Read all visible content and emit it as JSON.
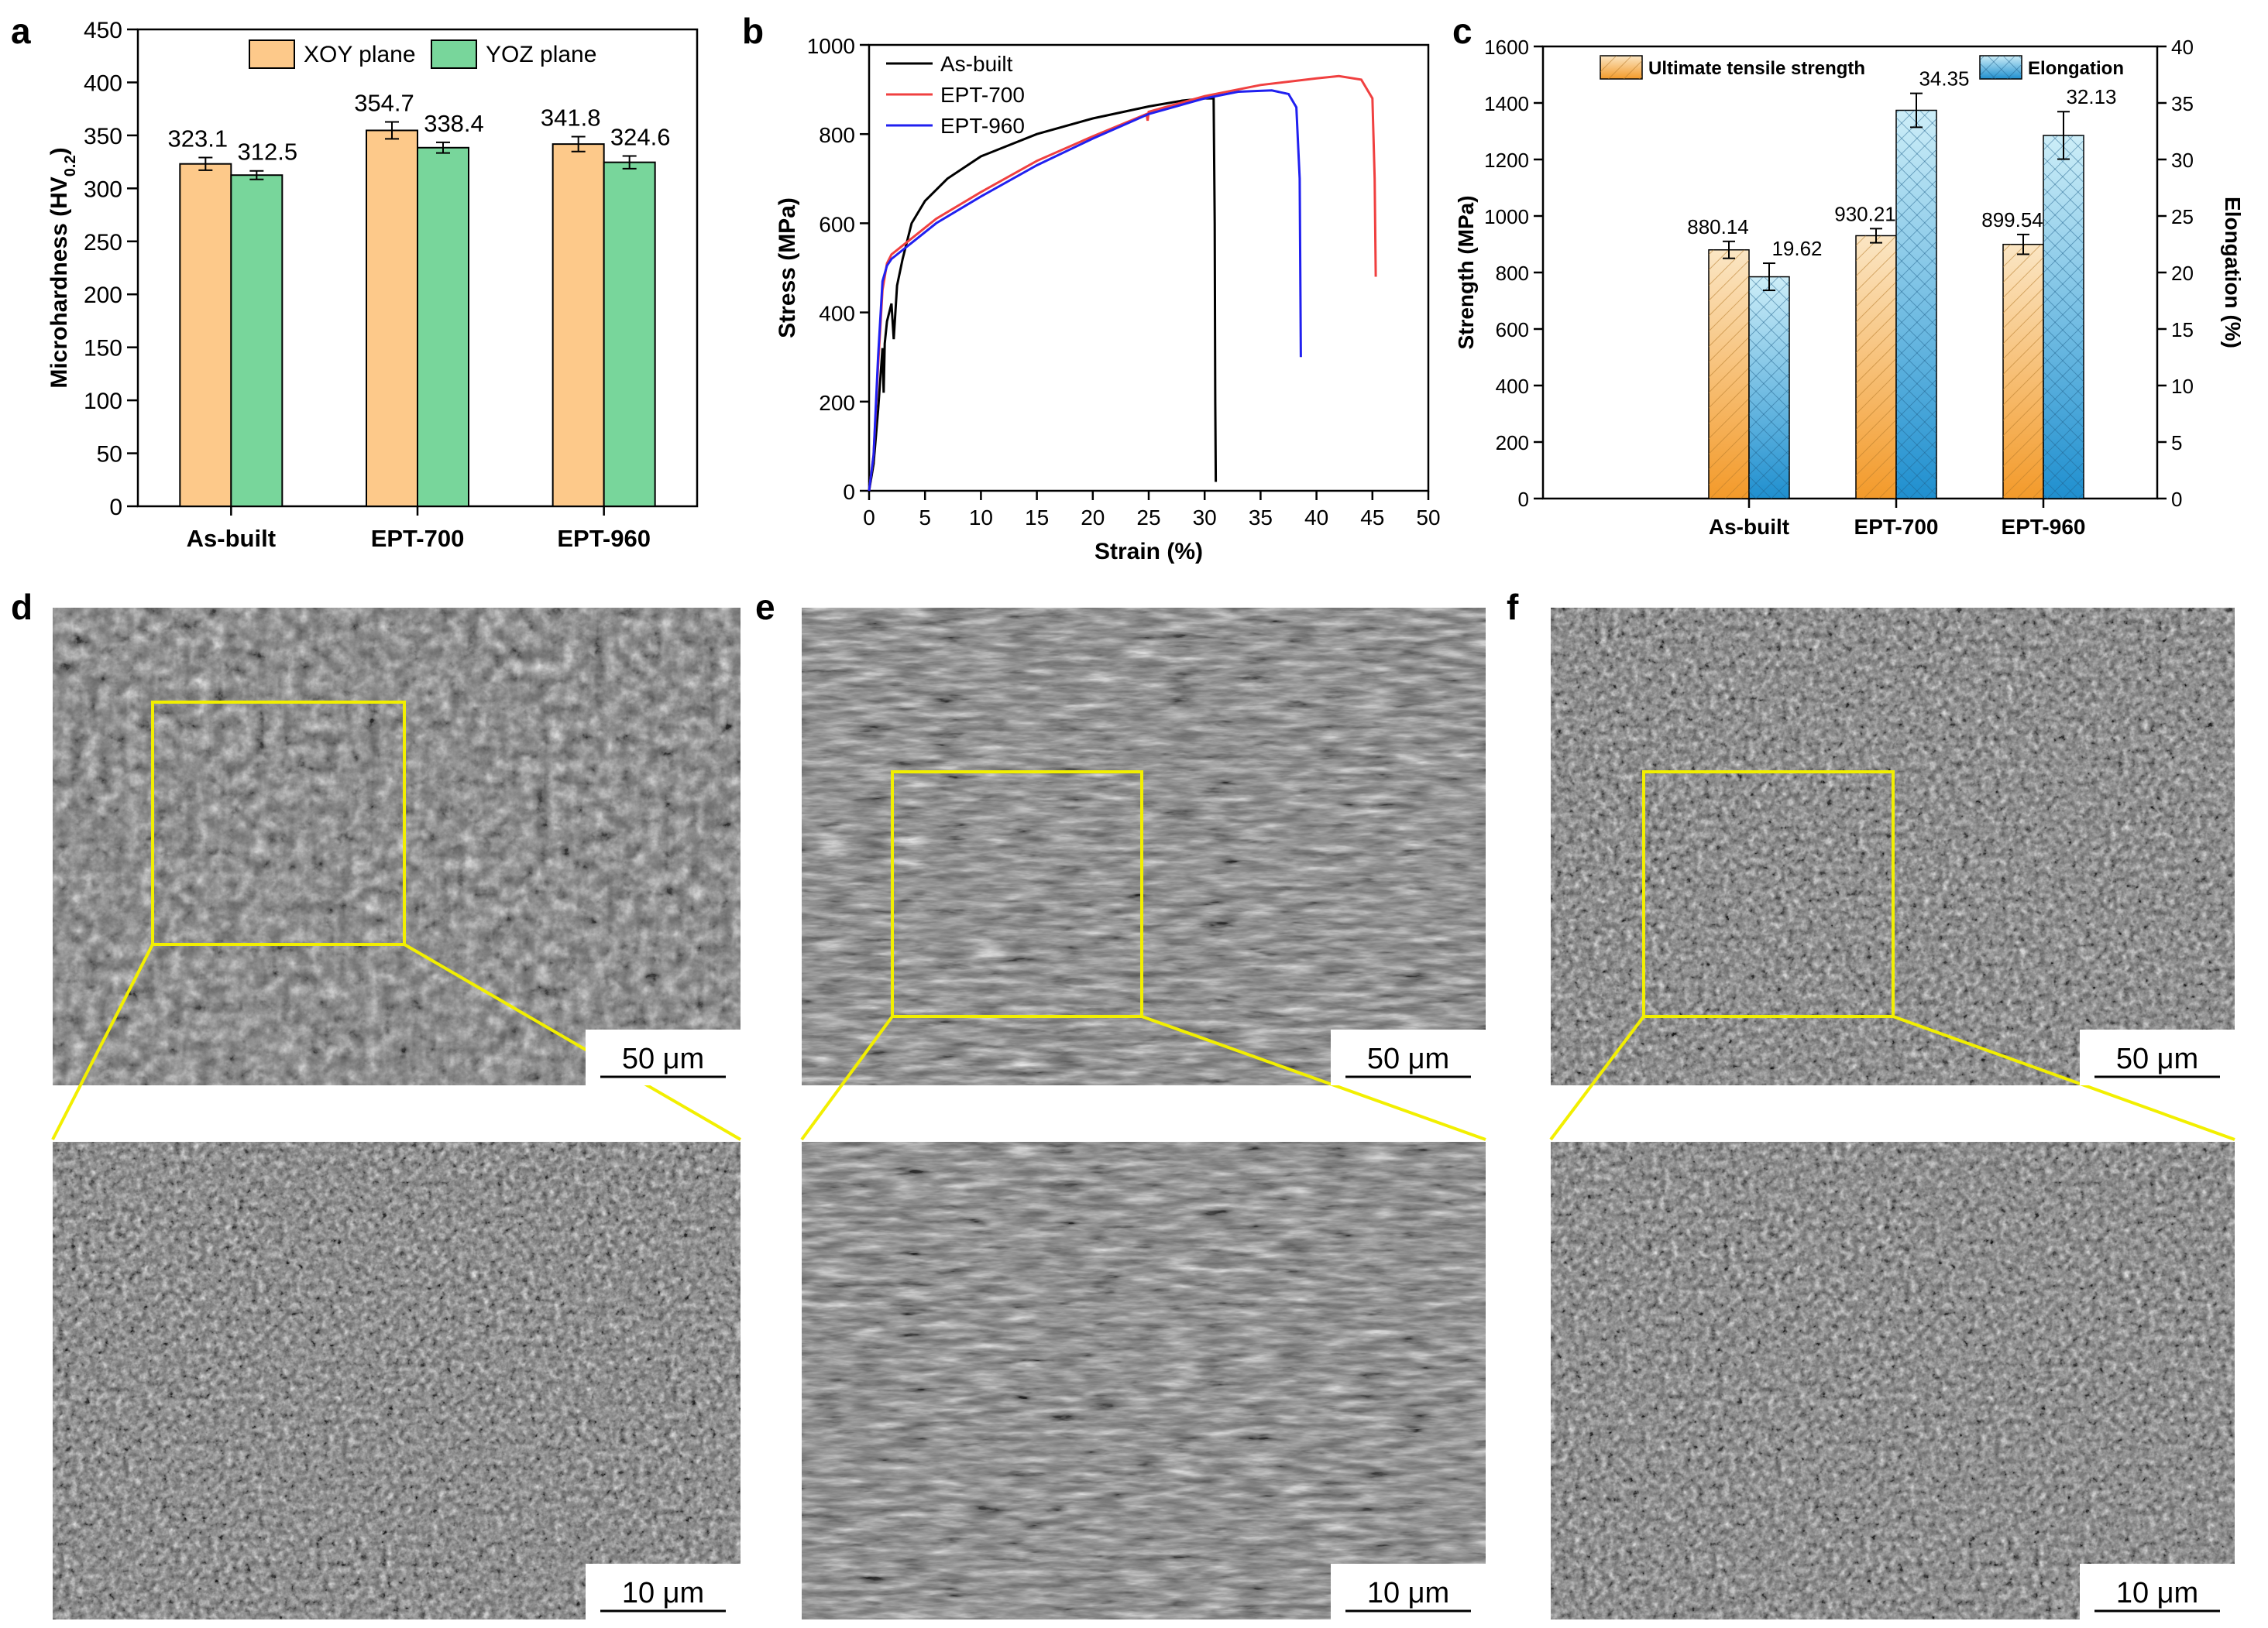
{
  "panel_labels": {
    "a": "a",
    "b": "b",
    "c": "c",
    "d": "d",
    "e": "e",
    "f": "f"
  },
  "colors": {
    "xoy": "#fdc98a",
    "yoz": "#78d69b",
    "as_built": "#000000",
    "ept700": "#f04040",
    "ept960": "#2020f0",
    "uts": "#f5a640",
    "elong": "#4aa8d8",
    "highlight": "#f2ef00"
  },
  "chart_data": [
    {
      "type": "bar",
      "title": "",
      "xlabel": "",
      "ylabel_main": "Microhardness (HV",
      "ylabel_sub": "0.2",
      "ylabel_end": ")",
      "ylim": [
        0,
        450
      ],
      "yticks": [
        0,
        50,
        100,
        150,
        200,
        250,
        300,
        350,
        400,
        450
      ],
      "categories": [
        "As-built",
        "EPT-700",
        "EPT-960"
      ],
      "series": [
        {
          "name": "XOY plane",
          "values": [
            323.1,
            354.7,
            341.8
          ],
          "errors": [
            6,
            8,
            7
          ],
          "labels": [
            "323.1",
            "354.7",
            "341.8"
          ]
        },
        {
          "name": "YOZ plane",
          "values": [
            312.5,
            338.4,
            324.6
          ],
          "errors": [
            4,
            5,
            6
          ],
          "labels": [
            "312.5",
            "338.4",
            "324.6"
          ]
        }
      ],
      "legend": "top"
    },
    {
      "type": "line",
      "title": "",
      "xlabel": "Strain (%)",
      "ylabel": "Stress (MPa)",
      "xlim": [
        0,
        50
      ],
      "ylim": [
        0,
        1000
      ],
      "xticks": [
        0,
        5,
        10,
        15,
        20,
        25,
        30,
        35,
        40,
        45,
        50
      ],
      "yticks": [
        0,
        200,
        400,
        600,
        800,
        1000
      ],
      "series": [
        {
          "name": "As-built",
          "x": [
            0,
            0.4,
            0.8,
            1.2,
            1.3,
            1.4,
            1.6,
            2.0,
            2.2,
            2.5,
            3.0,
            3.8,
            5,
            7,
            10,
            15,
            20,
            25,
            28,
            30,
            30.8,
            30.9,
            30.95,
            31.0
          ],
          "y": [
            0,
            60,
            180,
            320,
            220,
            330,
            380,
            420,
            340,
            460,
            520,
            600,
            650,
            700,
            750,
            800,
            835,
            862,
            875,
            880,
            880,
            600,
            200,
            20
          ]
        },
        {
          "name": "EPT-700",
          "x": [
            0,
            0.4,
            0.8,
            1.2,
            1.6,
            2.0,
            3.0,
            4.0,
            6,
            10,
            15,
            20,
            24.8,
            24.9,
            25.0,
            30,
            35,
            40,
            42,
            44,
            45,
            45.2,
            45.3
          ],
          "y": [
            0,
            80,
            280,
            450,
            510,
            530,
            550,
            570,
            610,
            670,
            740,
            795,
            845,
            830,
            850,
            885,
            910,
            925,
            930,
            922,
            880,
            700,
            480
          ]
        },
        {
          "name": "EPT-960",
          "x": [
            0,
            0.4,
            0.8,
            1.2,
            1.6,
            2.0,
            3.0,
            4.0,
            6,
            10,
            15,
            20,
            25,
            30,
            33,
            36,
            37.5,
            38.2,
            38.5,
            38.6
          ],
          "y": [
            0,
            80,
            300,
            470,
            505,
            520,
            540,
            560,
            600,
            660,
            730,
            790,
            845,
            880,
            895,
            898,
            890,
            860,
            700,
            300
          ]
        }
      ],
      "legend": "top-left"
    },
    {
      "type": "bar",
      "title": "",
      "xlabel": "",
      "ylabel": "Strength (MPa)",
      "ylabel_right": "Elongation (%)",
      "ylim": [
        0,
        1600
      ],
      "ylim_right": [
        0,
        40
      ],
      "yticks": [
        0,
        200,
        400,
        600,
        800,
        1000,
        1200,
        1400,
        1600
      ],
      "yticks_right": [
        0,
        5,
        10,
        15,
        20,
        25,
        30,
        35,
        40
      ],
      "categories": [
        "As-built",
        "EPT-700",
        "EPT-960"
      ],
      "series": [
        {
          "name": "Ultimate tensile strength",
          "axis": "left",
          "values": [
            880.14,
            930.21,
            899.54
          ],
          "errors": [
            30,
            25,
            35
          ],
          "labels": [
            "880.14",
            "930.21",
            "899.54"
          ]
        },
        {
          "name": "Elongation",
          "axis": "right",
          "values": [
            19.62,
            34.35,
            32.13
          ],
          "errors": [
            1.2,
            1.5,
            2.1
          ],
          "labels": [
            "19.62",
            "34.35",
            "32.13"
          ]
        }
      ],
      "legend": "top"
    }
  ],
  "sem": {
    "d": {
      "scale_top": "50 μm",
      "scale_bottom": "10 μm"
    },
    "e": {
      "scale_top": "50 μm",
      "scale_bottom": "10 μm"
    },
    "f": {
      "scale_top": "50 μm",
      "scale_bottom": "10 μm"
    }
  }
}
